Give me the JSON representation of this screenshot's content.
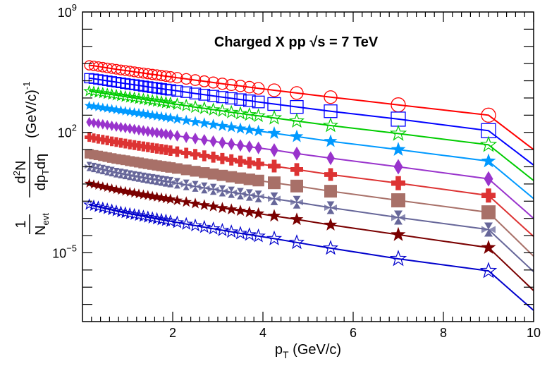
{
  "chart_data": {
    "type": "scatter",
    "title": "Charged X pp  √s = 7 TeV",
    "xlabel": "p_T (GeV/c)",
    "ylabel": "1/N_evt d²N/(dp_T dη) (GeV/c)^-1",
    "xlim": [
      0,
      10
    ],
    "ylim_log10": [
      -9,
      9
    ],
    "log_y": true,
    "grid": false,
    "x_ticks": [
      "2",
      "4",
      "6",
      "8",
      "10"
    ],
    "y_ticks": [
      "10^9",
      "10^2",
      "10^-5"
    ],
    "x": [
      0.15,
      0.25,
      0.35,
      0.45,
      0.55,
      0.65,
      0.75,
      0.85,
      0.95,
      1.05,
      1.15,
      1.25,
      1.35,
      1.45,
      1.55,
      1.65,
      1.75,
      1.85,
      1.95,
      2.1,
      2.3,
      2.5,
      2.7,
      2.9,
      3.1,
      3.3,
      3.5,
      3.7,
      3.9,
      4.25,
      4.75,
      5.5,
      7.0,
      9.0
    ],
    "series": [
      {
        "color": "#ff0000",
        "marker": "open-circle",
        "fit_end": 1.0,
        "values": [
          5.9,
          5.87,
          5.83,
          5.79,
          5.75,
          5.71,
          5.67,
          5.63,
          5.6,
          5.56,
          5.52,
          5.48,
          5.45,
          5.41,
          5.37,
          5.34,
          5.3,
          5.27,
          5.23,
          5.18,
          5.11,
          5.04,
          4.97,
          4.9,
          4.83,
          4.76,
          4.7,
          4.63,
          4.56,
          4.45,
          4.29,
          4.05,
          3.6,
          3.0
        ]
      },
      {
        "color": "#0000ff",
        "marker": "open-square",
        "fit_end": 0.1,
        "values": [
          5.15,
          5.12,
          5.08,
          5.04,
          5.0,
          4.96,
          4.92,
          4.88,
          4.84,
          4.8,
          4.77,
          4.73,
          4.69,
          4.65,
          4.61,
          4.58,
          4.54,
          4.5,
          4.47,
          4.41,
          4.34,
          4.26,
          4.19,
          4.12,
          4.05,
          3.98,
          3.91,
          3.84,
          3.77,
          3.65,
          3.48,
          3.23,
          2.77,
          2.1
        ]
      },
      {
        "color": "#00cc00",
        "marker": "open-star",
        "fit_end": -0.8,
        "values": [
          4.4,
          4.36,
          4.32,
          4.28,
          4.24,
          4.2,
          4.16,
          4.12,
          4.08,
          4.04,
          4.0,
          3.96,
          3.92,
          3.88,
          3.84,
          3.81,
          3.77,
          3.73,
          3.69,
          3.63,
          3.55,
          3.47,
          3.4,
          3.32,
          3.25,
          3.17,
          3.1,
          3.03,
          2.96,
          2.84,
          2.66,
          2.4,
          1.93,
          1.28
        ]
      },
      {
        "color": "#0099ff",
        "marker": "star",
        "fit_end": -1.85,
        "values": [
          3.55,
          3.51,
          3.47,
          3.43,
          3.39,
          3.35,
          3.31,
          3.27,
          3.23,
          3.19,
          3.15,
          3.11,
          3.07,
          3.03,
          2.99,
          2.95,
          2.91,
          2.87,
          2.83,
          2.77,
          2.69,
          2.61,
          2.53,
          2.45,
          2.37,
          2.3,
          2.22,
          2.15,
          2.08,
          1.95,
          1.76,
          1.48,
          1.0,
          0.33
        ]
      },
      {
        "color": "#9933cc",
        "marker": "diamond",
        "fit_end": -3.0,
        "values": [
          2.6,
          2.55,
          2.51,
          2.47,
          2.43,
          2.38,
          2.34,
          2.3,
          2.26,
          2.22,
          2.18,
          2.14,
          2.1,
          2.06,
          2.02,
          1.98,
          1.94,
          1.9,
          1.86,
          1.8,
          1.72,
          1.64,
          1.56,
          1.48,
          1.4,
          1.32,
          1.24,
          1.17,
          1.1,
          0.97,
          0.77,
          0.5,
          0.0,
          -0.7
        ]
      },
      {
        "color": "#dd3333",
        "marker": "cross",
        "fit_end": -4.05,
        "values": [
          1.72,
          1.67,
          1.62,
          1.58,
          1.53,
          1.48,
          1.44,
          1.39,
          1.35,
          1.3,
          1.26,
          1.22,
          1.18,
          1.14,
          1.1,
          1.06,
          1.02,
          0.98,
          0.94,
          0.88,
          0.8,
          0.72,
          0.64,
          0.56,
          0.48,
          0.4,
          0.32,
          0.24,
          0.17,
          0.04,
          -0.16,
          -0.45,
          -0.95,
          -1.67
        ]
      },
      {
        "color": "#a87068",
        "marker": "filled-square",
        "fit_end": -5.2,
        "values": [
          0.75,
          0.7,
          0.66,
          0.61,
          0.56,
          0.51,
          0.46,
          0.42,
          0.38,
          0.33,
          0.29,
          0.25,
          0.2,
          0.16,
          0.12,
          0.08,
          0.04,
          0.0,
          -0.04,
          -0.1,
          -0.18,
          -0.26,
          -0.34,
          -0.42,
          -0.5,
          -0.58,
          -0.66,
          -0.73,
          -0.8,
          -0.93,
          -1.12,
          -1.42,
          -1.95,
          -2.65
        ]
      },
      {
        "color": "#666699",
        "marker": "hourglass",
        "fit_end": -6.1,
        "values": [
          0.02,
          -0.04,
          -0.1,
          -0.16,
          -0.22,
          -0.28,
          -0.34,
          -0.39,
          -0.44,
          -0.49,
          -0.54,
          -0.58,
          -0.63,
          -0.68,
          -0.72,
          -0.76,
          -0.81,
          -0.85,
          -0.89,
          -0.96,
          -1.05,
          -1.14,
          -1.23,
          -1.31,
          -1.4,
          -1.48,
          -1.56,
          -1.64,
          -1.72,
          -1.86,
          -2.06,
          -2.38,
          -2.95,
          -3.65
        ]
      },
      {
        "color": "#7a0000",
        "marker": "star",
        "fit_end": -7.2,
        "values": [
          -0.97,
          -1.03,
          -1.09,
          -1.15,
          -1.21,
          -1.27,
          -1.33,
          -1.38,
          -1.43,
          -1.48,
          -1.53,
          -1.58,
          -1.63,
          -1.67,
          -1.72,
          -1.76,
          -1.81,
          -1.85,
          -1.89,
          -1.96,
          -2.05,
          -2.14,
          -2.23,
          -2.31,
          -2.4,
          -2.48,
          -2.56,
          -2.64,
          -2.72,
          -2.86,
          -3.06,
          -3.38,
          -3.95,
          -4.7
        ]
      },
      {
        "color": "#0000cc",
        "marker": "open-star",
        "fit_end": -8.35,
        "values": [
          -2.2,
          -2.27,
          -2.33,
          -2.39,
          -2.45,
          -2.51,
          -2.57,
          -2.63,
          -2.68,
          -2.73,
          -2.78,
          -2.83,
          -2.88,
          -2.93,
          -2.98,
          -3.03,
          -3.08,
          -3.12,
          -3.17,
          -3.24,
          -3.33,
          -3.42,
          -3.51,
          -3.6,
          -3.69,
          -3.78,
          -3.87,
          -3.95,
          -4.03,
          -4.18,
          -4.4,
          -4.73,
          -5.35,
          -6.05
        ]
      }
    ]
  }
}
